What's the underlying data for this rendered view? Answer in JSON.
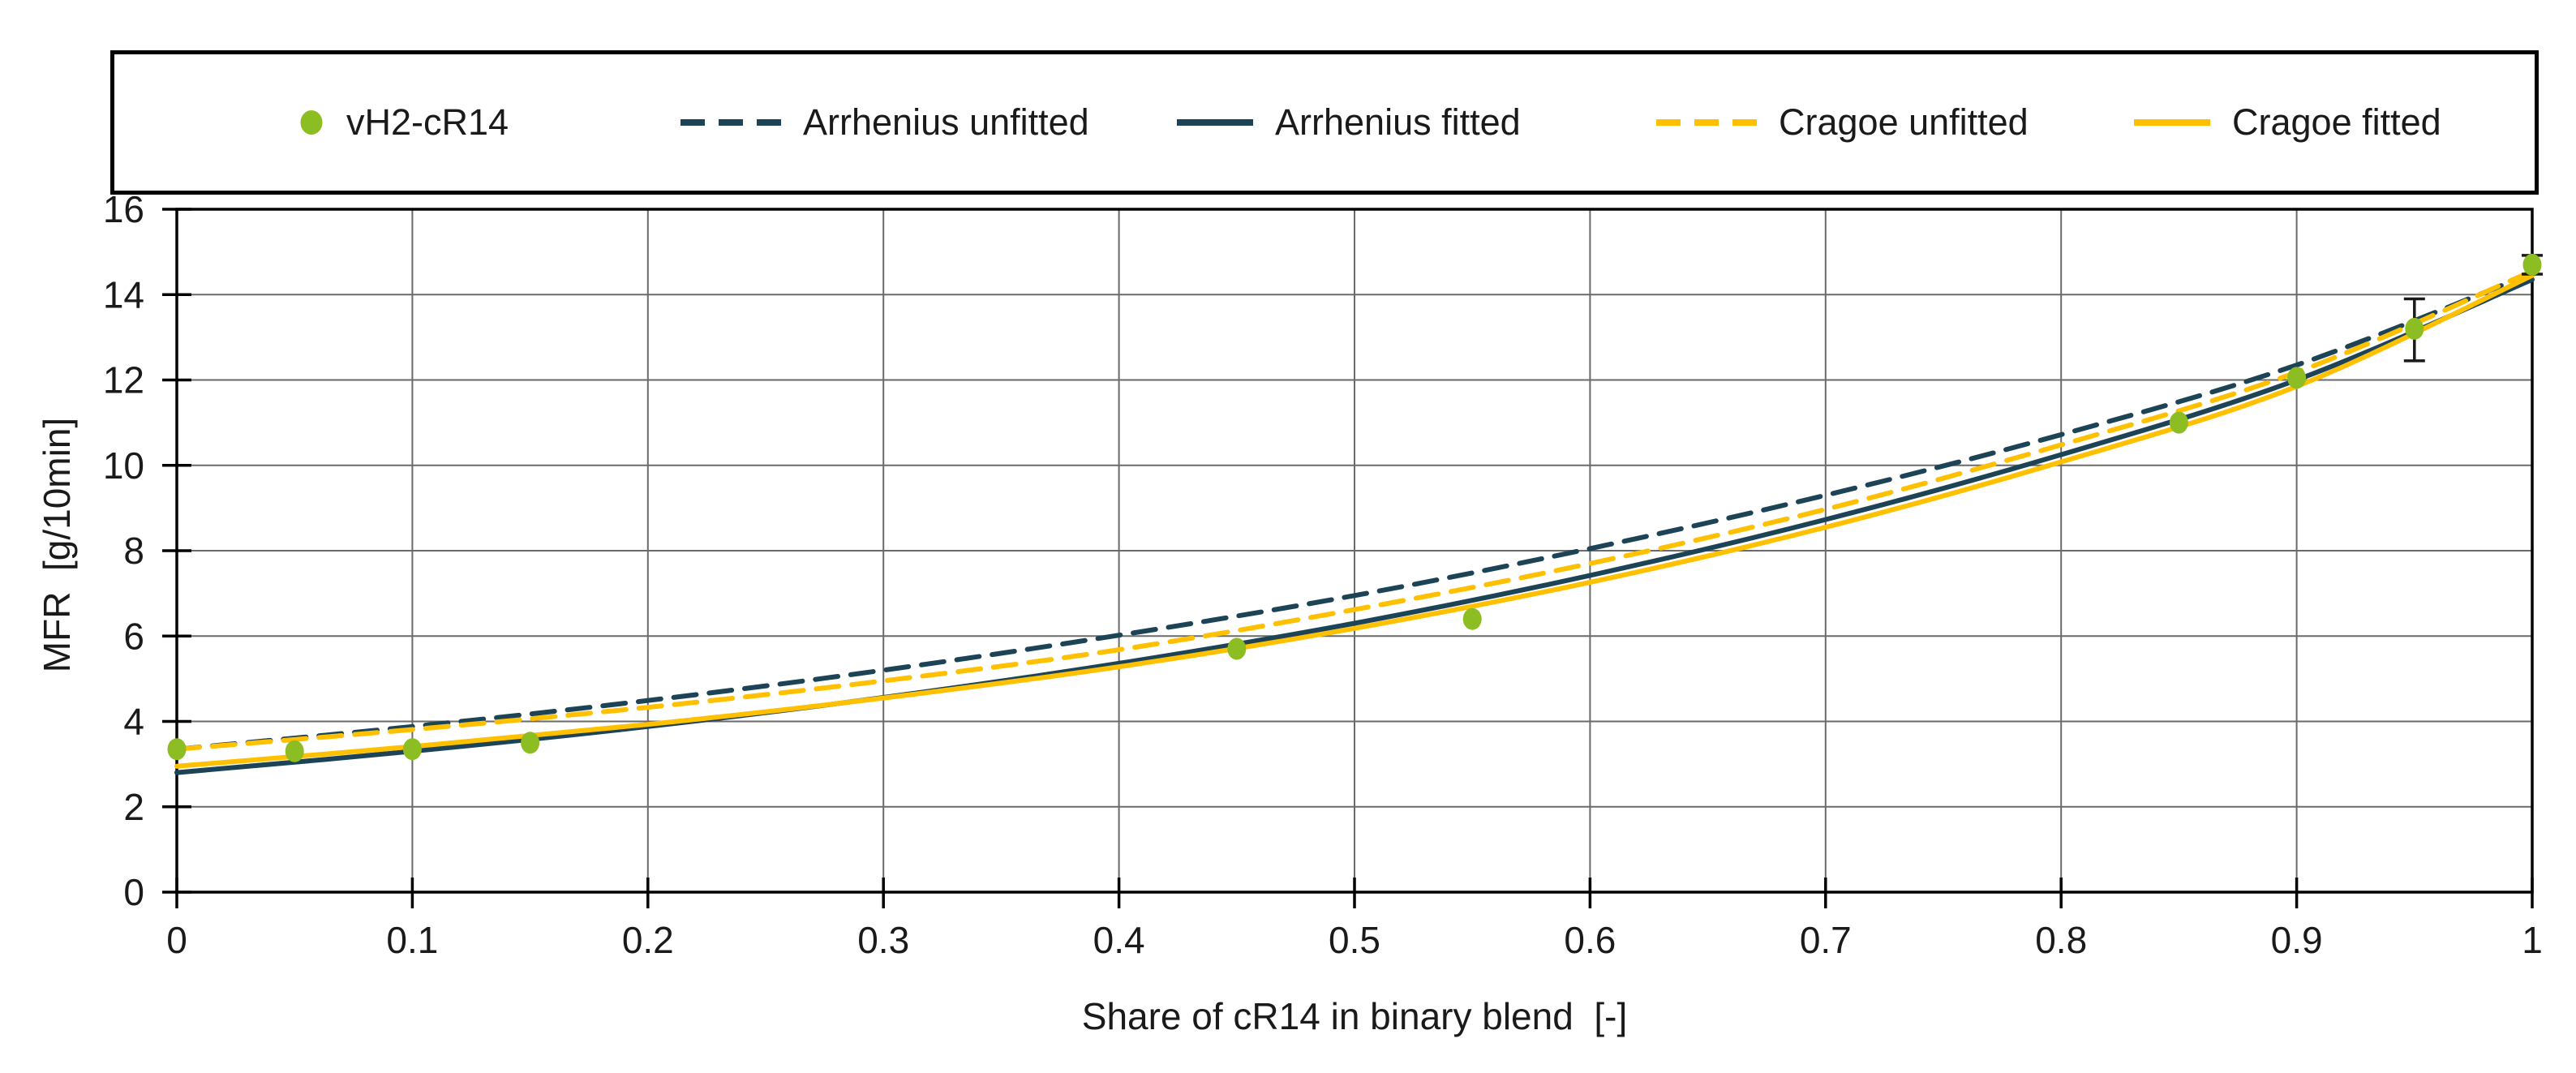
{
  "colors": {
    "navy": "#1d4456",
    "gold": "#ffc000",
    "green": "#8cbd22",
    "grid": "#6a6a6a",
    "axis": "#000000",
    "error_bar": "#1a1a1a",
    "text": "#1a1a1a",
    "background": "#ffffff"
  },
  "legend": {
    "items": [
      {
        "label": "vH2-cR14",
        "marker": "dot",
        "color": "#8cbd22"
      },
      {
        "label": "Arrhenius unfitted",
        "marker": "dashed",
        "color": "#1d4456"
      },
      {
        "label": "Arrhenius fitted",
        "marker": "solid",
        "color": "#1d4456"
      },
      {
        "label": "Cragoe unfitted",
        "marker": "dashed",
        "color": "#ffc000"
      },
      {
        "label": "Cragoe fitted",
        "marker": "solid",
        "color": "#ffc000"
      }
    ]
  },
  "chart_data": {
    "type": "line",
    "title": "",
    "xlabel": "Share of cR14 in binary blend  [-]",
    "ylabel": "MFR  [g/10min]",
    "xlim": [
      0,
      1
    ],
    "ylim": [
      0,
      16
    ],
    "grid": true,
    "legend_position": "top",
    "x_ticks": [
      0,
      0.1,
      0.2,
      0.3,
      0.4,
      0.5,
      0.6,
      0.7,
      0.8,
      0.9,
      1
    ],
    "x_tick_labels": [
      "0",
      "0.1",
      "0.2",
      "0.3",
      "0.4",
      "0.5",
      "0.6",
      "0.7",
      "0.8",
      "0.9",
      "1"
    ],
    "y_ticks": [
      0,
      2,
      4,
      6,
      8,
      10,
      12,
      14,
      16
    ],
    "y_tick_labels": [
      "0",
      "2",
      "4",
      "6",
      "8",
      "10",
      "12",
      "14",
      "16"
    ],
    "scatter": {
      "name": "vH2-cR14",
      "color": "#8cbd22",
      "points": [
        [
          0,
          3.35
        ],
        [
          0.05,
          3.3
        ],
        [
          0.1,
          3.35
        ],
        [
          0.15,
          3.5
        ],
        [
          0.45,
          5.7
        ],
        [
          0.55,
          6.4
        ],
        [
          0.85,
          11.0
        ],
        [
          0.9,
          12.05
        ],
        [
          0.95,
          13.2
        ],
        [
          1,
          14.7
        ]
      ],
      "error_bars": [
        {
          "x": 0.95,
          "low": 12.45,
          "high": 13.9
        },
        {
          "x": 1,
          "low": 14.48,
          "high": 14.92
        }
      ]
    },
    "x_samples": [
      0,
      0.1,
      0.2,
      0.3,
      0.4,
      0.5,
      0.6,
      0.7,
      0.8,
      0.9,
      1
    ],
    "series": [
      {
        "name": "Arrhenius unfitted",
        "style": "dashed",
        "color": "#1d4456",
        "values": [
          3.35,
          3.88,
          4.49,
          5.2,
          6.02,
          6.95,
          8.05,
          9.3,
          10.72,
          12.35,
          14.5
        ]
      },
      {
        "name": "Arrhenius fitted",
        "style": "solid",
        "color": "#1d4456",
        "values": [
          2.8,
          3.3,
          3.88,
          4.56,
          5.36,
          6.3,
          7.42,
          8.73,
          10.25,
          12.0,
          14.35
        ]
      },
      {
        "name": "Cragoe unfitted",
        "style": "dashed",
        "color": "#ffc000",
        "values": [
          3.35,
          3.81,
          4.33,
          4.95,
          5.68,
          6.62,
          7.7,
          8.97,
          10.48,
          12.18,
          14.55
        ]
      },
      {
        "name": "Cragoe fitted",
        "style": "solid",
        "color": "#ffc000",
        "values": [
          2.95,
          3.41,
          3.93,
          4.55,
          5.28,
          6.18,
          7.26,
          8.55,
          10.08,
          11.85,
          14.45
        ]
      }
    ]
  }
}
